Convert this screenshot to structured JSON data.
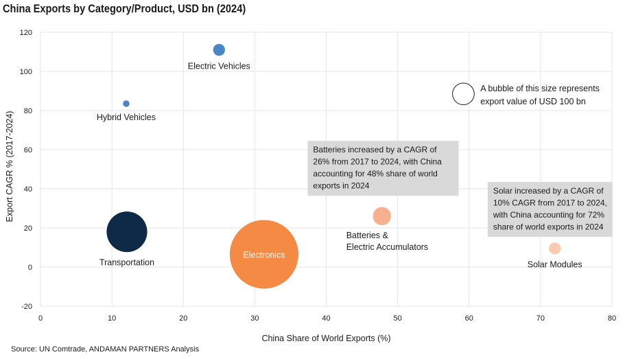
{
  "title": "China Exports by Category/Product, USD bn (2024)",
  "source": "Source: UN Comtrade, ANDAMAN PARTNERS Analysis",
  "chart_data": {
    "type": "scatter",
    "title": "China Exports by Category/Product, USD bn (2024)",
    "xlabel": "China Share of World Exports (%)",
    "ylabel": "Export CAGR % (2017-2024)",
    "xlim": [
      0,
      80
    ],
    "ylim": [
      -20,
      120
    ],
    "x_ticks": [
      0,
      10,
      20,
      30,
      40,
      50,
      60,
      70,
      80
    ],
    "y_ticks": [
      -20,
      0,
      20,
      40,
      60,
      80,
      100,
      120
    ],
    "grid": true,
    "points": [
      {
        "label": "Electric Vehicles",
        "x": 25,
        "y": 111,
        "size_usd_bn": 30,
        "color": "#4a86c5",
        "label_pos": "below"
      },
      {
        "label": "Hybrid Vehicles",
        "x": 12,
        "y": 83.5,
        "size_usd_bn": 9,
        "color": "#4a86c5",
        "label_pos": "below"
      },
      {
        "label": "Transportation",
        "x": 12.1,
        "y": 18,
        "size_usd_bn": 350,
        "color": "#0f2a47",
        "label_pos": "below"
      },
      {
        "label": "Electronics",
        "x": 31.3,
        "y": 6.5,
        "size_usd_bn": 1000,
        "color": "#f58a44",
        "label_pos": "inside"
      },
      {
        "label": "Batteries & Electric Accumulators",
        "x": 47.8,
        "y": 26,
        "size_usd_bn": 70,
        "color": "#f7b08f",
        "label_pos": "below"
      },
      {
        "label": "Solar Modules",
        "x": 72,
        "y": 9.5,
        "size_usd_bn": 30,
        "color": "#f9cbb0",
        "label_pos": "below"
      }
    ],
    "size_legend": {
      "x": 59.2,
      "y": 88.5,
      "size_usd_bn": 100,
      "text": [
        "A bubble of this size represents",
        "export value of USD 100 bn"
      ]
    },
    "annotations": [
      {
        "x": 37.4,
        "y": 64.5,
        "lines": [
          "Batteries increased by a CAGR of",
          "26% from 2017 to 2024, with China",
          "accounting for 48% share of world",
          "exports in 2024"
        ]
      },
      {
        "x": 62.6,
        "y": 43.5,
        "lines": [
          "Solar increased by a CAGR of",
          "10% CAGR from 2017 to 2024,",
          "with China accounting for 72%",
          "share of world exports in 2024"
        ]
      }
    ]
  }
}
